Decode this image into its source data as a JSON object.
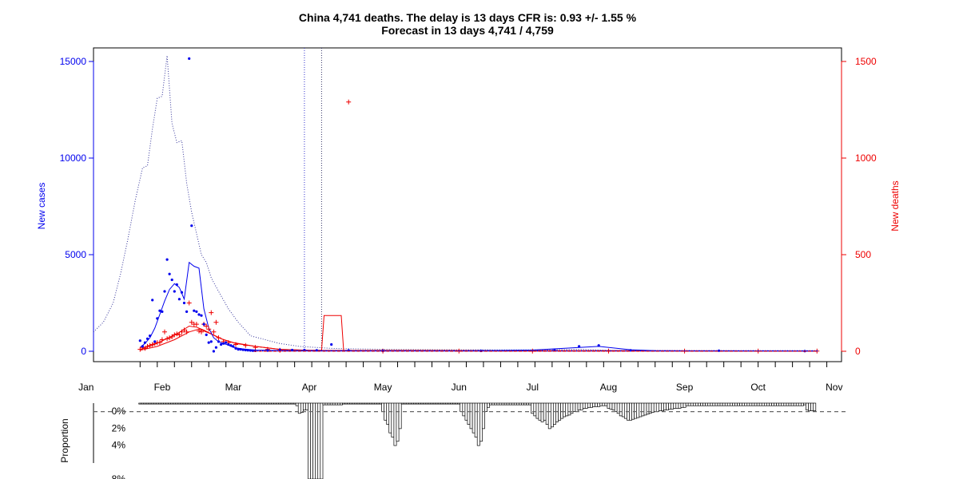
{
  "chart_data": [
    {
      "type": "line",
      "title": "China 4,741 deaths. The delay is 13 days CFR is: 0.93 +/- 1.55 %",
      "subtitle": "Forecast in 13 days 4,741 / 4,759",
      "ylabel": "New cases",
      "y2label": "New deaths",
      "ylim": [
        0,
        15500
      ],
      "y2lim": [
        0,
        1550
      ],
      "yticks": [
        "0",
        "5000",
        "10000",
        "15000"
      ],
      "y2ticks": [
        "0",
        "500",
        "1000",
        "1500"
      ],
      "xlim": [
        "2020-01-04",
        "2020-11-04"
      ],
      "month_labels": [
        "Jan",
        "Feb",
        "Mar",
        "Apr",
        "May",
        "Jun",
        "Jul",
        "Aug",
        "Sep",
        "Oct",
        "Nov"
      ],
      "month_starts": [
        "2020-01-01",
        "2020-02-01",
        "2020-03-01",
        "2020-04-01",
        "2020-05-01",
        "2020-06-01",
        "2020-07-01",
        "2020-08-01",
        "2020-09-01",
        "2020-10-01",
        "2020-11-01"
      ],
      "week_ticks_start": "2020-01-23",
      "vertical_lines": [
        {
          "x": "2020-03-30",
          "color": "#3333cc"
        },
        {
          "x": "2020-04-06",
          "color": "#333366"
        }
      ],
      "series_cases_points": {
        "color": "#0000ee",
        "x": [
          "2020-01-23",
          "2020-01-24",
          "2020-01-25",
          "2020-01-26",
          "2020-01-27",
          "2020-01-28",
          "2020-01-29",
          "2020-01-30",
          "2020-01-31",
          "2020-02-01",
          "2020-02-02",
          "2020-02-03",
          "2020-02-04",
          "2020-02-05",
          "2020-02-06",
          "2020-02-07",
          "2020-02-08",
          "2020-02-09",
          "2020-02-10",
          "2020-02-11",
          "2020-02-12",
          "2020-02-13",
          "2020-02-14",
          "2020-02-15",
          "2020-02-16",
          "2020-02-17",
          "2020-02-18",
          "2020-02-19",
          "2020-02-20",
          "2020-02-21",
          "2020-02-22",
          "2020-02-23",
          "2020-02-24",
          "2020-02-25",
          "2020-02-26",
          "2020-02-27",
          "2020-02-28",
          "2020-02-29",
          "2020-03-01",
          "2020-03-02",
          "2020-03-03",
          "2020-03-04",
          "2020-03-05",
          "2020-03-06",
          "2020-03-07",
          "2020-03-08",
          "2020-03-09",
          "2020-03-10",
          "2020-03-15",
          "2020-03-20",
          "2020-03-25",
          "2020-03-30",
          "2020-04-04",
          "2020-04-10",
          "2020-04-17",
          "2020-05-01",
          "2020-06-10",
          "2020-07-10",
          "2020-07-20",
          "2020-07-28",
          "2020-08-10",
          "2020-09-15",
          "2020-10-20"
        ],
        "y": [
          550,
          250,
          450,
          650,
          800,
          2650,
          500,
          1700,
          2100,
          2050,
          3100,
          4750,
          4000,
          3700,
          3100,
          3450,
          2700,
          3050,
          2500,
          2050,
          15150,
          6500,
          2100,
          2050,
          1900,
          1850,
          1400,
          850,
          450,
          500,
          0,
          200,
          500,
          350,
          400,
          450,
          350,
          300,
          250,
          150,
          100,
          100,
          80,
          60,
          50,
          40,
          30,
          25,
          40,
          80,
          60,
          60,
          50,
          350,
          40,
          20,
          20,
          60,
          250,
          300,
          50,
          30,
          10
        ]
      },
      "series_cases_avg": {
        "color": "#0000ee",
        "x": [
          "2020-01-23",
          "2020-01-25",
          "2020-01-27",
          "2020-01-29",
          "2020-01-31",
          "2020-02-02",
          "2020-02-04",
          "2020-02-06",
          "2020-02-08",
          "2020-02-10",
          "2020-02-12",
          "2020-02-14",
          "2020-02-16",
          "2020-02-18",
          "2020-02-20",
          "2020-02-22",
          "2020-02-24",
          "2020-02-26",
          "2020-02-28",
          "2020-03-01",
          "2020-03-05",
          "2020-03-10",
          "2020-03-20",
          "2020-04-01",
          "2020-05-01",
          "2020-06-01",
          "2020-07-01",
          "2020-07-20",
          "2020-07-28",
          "2020-08-10",
          "2020-08-20",
          "2020-09-01",
          "2020-10-01",
          "2020-10-25"
        ],
        "y": [
          200,
          400,
          700,
          1200,
          1900,
          2600,
          3200,
          3500,
          3300,
          2700,
          4600,
          4400,
          4300,
          2200,
          1200,
          700,
          500,
          400,
          320,
          200,
          120,
          60,
          40,
          30,
          20,
          20,
          60,
          200,
          250,
          80,
          30,
          20,
          20,
          10
        ]
      },
      "series_cases_cum_dotted": {
        "color": "#333399",
        "x": [
          "2020-01-04",
          "2020-01-08",
          "2020-01-12",
          "2020-01-15",
          "2020-01-18",
          "2020-01-21",
          "2020-01-24",
          "2020-01-26",
          "2020-01-28",
          "2020-01-30",
          "2020-02-01",
          "2020-02-03",
          "2020-02-05",
          "2020-02-07",
          "2020-02-09",
          "2020-02-11",
          "2020-02-13",
          "2020-02-15",
          "2020-02-17",
          "2020-02-19",
          "2020-02-21",
          "2020-02-24",
          "2020-02-28",
          "2020-03-03",
          "2020-03-08",
          "2020-03-14",
          "2020-03-20",
          "2020-03-28",
          "2020-04-10",
          "2020-05-01",
          "2020-06-01",
          "2020-07-01",
          "2020-07-20",
          "2020-08-01",
          "2020-09-01",
          "2020-10-01",
          "2020-10-25"
        ],
        "y": [
          1000,
          1500,
          2500,
          4000,
          5800,
          7800,
          9500,
          9600,
          11500,
          13100,
          13200,
          15300,
          11800,
          10800,
          10900,
          8700,
          7200,
          6100,
          5000,
          4600,
          3800,
          3100,
          2200,
          1500,
          800,
          600,
          400,
          250,
          150,
          100,
          80,
          70,
          100,
          50,
          30,
          20,
          20
        ]
      },
      "series_deaths_points": {
        "color": "#ee0000",
        "x": [
          "2020-01-23",
          "2020-01-24",
          "2020-01-25",
          "2020-01-26",
          "2020-01-27",
          "2020-01-28",
          "2020-01-29",
          "2020-01-30",
          "2020-01-31",
          "2020-02-01",
          "2020-02-02",
          "2020-02-03",
          "2020-02-04",
          "2020-02-05",
          "2020-02-06",
          "2020-02-07",
          "2020-02-08",
          "2020-02-09",
          "2020-02-10",
          "2020-02-11",
          "2020-02-12",
          "2020-02-13",
          "2020-02-14",
          "2020-02-15",
          "2020-02-16",
          "2020-02-17",
          "2020-02-18",
          "2020-02-19",
          "2020-02-20",
          "2020-02-21",
          "2020-02-22",
          "2020-02-23",
          "2020-02-24",
          "2020-02-26",
          "2020-02-28",
          "2020-03-02",
          "2020-03-06",
          "2020-03-10",
          "2020-03-15",
          "2020-03-20",
          "2020-04-17",
          "2020-05-01",
          "2020-06-01",
          "2020-07-01",
          "2020-08-01",
          "2020-09-01",
          "2020-10-01",
          "2020-10-25"
        ],
        "y": [
          10,
          20,
          15,
          25,
          30,
          35,
          40,
          45,
          45,
          60,
          100,
          65,
          70,
          75,
          85,
          90,
          85,
          100,
          110,
          100,
          250,
          150,
          140,
          140,
          105,
          100,
          140,
          130,
          115,
          200,
          100,
          150,
          70,
          50,
          45,
          35,
          30,
          20,
          10,
          5,
          1290,
          1,
          1,
          1,
          1,
          1,
          1,
          1
        ]
      },
      "series_deaths_avg": {
        "color": "#ee0000",
        "x": [
          "2020-01-23",
          "2020-01-28",
          "2020-02-02",
          "2020-02-07",
          "2020-02-12",
          "2020-02-15",
          "2020-02-18",
          "2020-02-21",
          "2020-02-26",
          "2020-03-02",
          "2020-03-10",
          "2020-03-20",
          "2020-04-01",
          "2020-04-06",
          "2020-04-07",
          "2020-04-14",
          "2020-04-15",
          "2020-05-01",
          "2020-10-25"
        ],
        "y": [
          10,
          30,
          60,
          90,
          130,
          125,
          110,
          90,
          60,
          40,
          25,
          10,
          5,
          5,
          185,
          185,
          3,
          2,
          1
        ]
      },
      "series_deaths_cum": {
        "color": "#ee0000",
        "x": [
          "2020-01-23",
          "2020-01-30",
          "2020-02-06",
          "2020-02-12",
          "2020-02-16",
          "2020-02-20",
          "2020-02-25",
          "2020-03-01",
          "2020-03-10",
          "2020-03-20",
          "2020-04-01",
          "2020-10-25"
        ],
        "y": [
          5,
          25,
          60,
          100,
          115,
          95,
          65,
          45,
          25,
          10,
          5,
          2
        ]
      }
    },
    {
      "type": "bar",
      "ylabel": "Proportion",
      "ytick_labels": [
        "0%",
        "2%",
        "4%",
        "8%"
      ],
      "yticks": [
        0,
        2,
        4,
        8
      ],
      "ylim": [
        0,
        8.3
      ],
      "reference_line": 1,
      "bars": [
        {
          "start": "2020-01-23",
          "end": "2020-03-26",
          "values": [
            0.1
          ]
        },
        {
          "start": "2020-03-27",
          "end": "2020-03-31",
          "values": [
            0.3,
            1.2,
            1.1,
            0.8,
            0.8
          ]
        },
        {
          "start": "2020-04-01",
          "end": "2020-04-06",
          "values": [
            10,
            10,
            10,
            10,
            10,
            10
          ]
        },
        {
          "start": "2020-04-07",
          "end": "2020-04-14",
          "values": [
            0.2,
            0.2,
            0.2,
            0.2,
            0.2,
            0.2,
            0.2,
            0.2
          ]
        },
        {
          "start": "2020-04-15",
          "end": "2020-04-30",
          "values": [
            0.1
          ]
        },
        {
          "start": "2020-05-01",
          "end": "2020-05-08",
          "values": [
            1.0,
            2.0,
            2.5,
            3.5,
            4.0,
            5.0,
            4.5,
            3.0
          ]
        },
        {
          "start": "2020-05-09",
          "end": "2020-06-01",
          "values": [
            0.1
          ]
        },
        {
          "start": "2020-06-02",
          "end": "2020-06-13",
          "values": [
            1.0,
            1.5,
            2.0,
            2.5,
            3.0,
            3.5,
            4.0,
            5.0,
            4.5,
            3.0,
            1.0,
            0.5
          ]
        },
        {
          "start": "2020-06-14",
          "end": "2020-06-30",
          "values": [
            0.2
          ]
        },
        {
          "start": "2020-07-01",
          "end": "2020-07-31",
          "values": [
            1.2,
            1.5,
            1.8,
            2.0,
            2.2,
            2.0,
            2.5,
            3.0,
            2.8,
            2.5,
            2.2,
            2.0,
            1.8,
            1.6,
            1.5,
            1.4,
            1.2,
            1.0,
            1.0,
            0.8,
            0.8,
            0.6,
            0.6,
            0.5,
            0.5,
            0.4,
            0.4,
            0.4,
            0.3,
            0.3,
            0.3
          ]
        },
        {
          "start": "2020-08-01",
          "end": "2020-09-01",
          "values": [
            0.6,
            0.7,
            0.8,
            1.0,
            1.2,
            1.5,
            1.6,
            1.8,
            2.0,
            2.0,
            1.9,
            1.8,
            1.7,
            1.6,
            1.5,
            1.4,
            1.3,
            1.2,
            1.1,
            1.0,
            1.0,
            0.9,
            0.9,
            0.8,
            0.8,
            0.7,
            0.7,
            0.6,
            0.6,
            0.6,
            0.5,
            0.5
          ]
        },
        {
          "start": "2020-09-02",
          "end": "2020-10-19",
          "values": [
            0.3
          ]
        },
        {
          "start": "2020-10-20",
          "end": "2020-10-24",
          "values": [
            0.2,
            0.8,
            0.9,
            0.9,
            0.9
          ]
        }
      ]
    }
  ]
}
